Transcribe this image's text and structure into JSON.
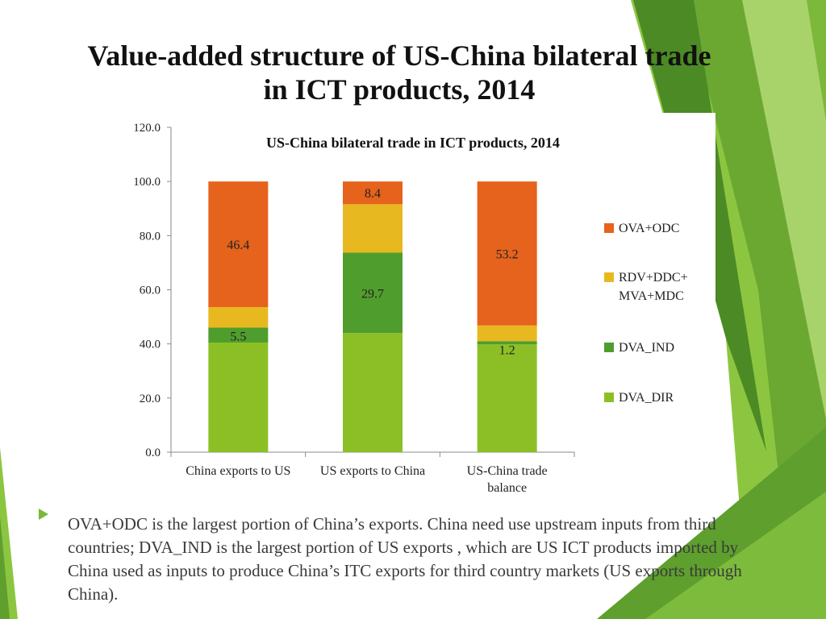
{
  "slide": {
    "title": "Value-added structure of US-China bilateral trade in ICT products, 2014",
    "bullet": "OVA+ODC is the largest portion of China’s exports. China need use upstream inputs from third countries; DVA_IND is the largest portion of US exports , which are US ICT products imported by China used as inputs to produce China’s ITC exports for third country markets (US exports through China).",
    "accent_colors": [
      "#8dc63f",
      "#5a9e2e",
      "#3f7a1e",
      "#a7d168"
    ]
  },
  "chart_data": {
    "type": "bar",
    "stacked": true,
    "title": "US-China bilateral trade in ICT products, 2014",
    "xlabel": "",
    "ylabel": "",
    "categories": [
      "China exports to US",
      "US exports to China",
      "US-China trade balance"
    ],
    "ylim": [
      0,
      120
    ],
    "yticks": [
      "0.0",
      "20.0",
      "40.0",
      "60.0",
      "80.0",
      "100.0",
      "120.0"
    ],
    "grid": false,
    "legend_position": "right",
    "series": [
      {
        "name": "DVA_DIR",
        "color": "#8cbf26",
        "values": [
          40.5,
          44.0,
          39.8
        ],
        "labels": [
          null,
          null,
          null
        ]
      },
      {
        "name": "DVA_IND",
        "color": "#4f9e2d",
        "values": [
          5.5,
          29.7,
          1.2
        ],
        "labels": [
          "5.5",
          "29.7",
          "1.2"
        ]
      },
      {
        "name": "RDV+DDC+ MVA+MDC",
        "color": "#e8b820",
        "values": [
          7.6,
          17.9,
          5.8
        ],
        "labels": [
          null,
          null,
          null
        ]
      },
      {
        "name": "OVA+ODC",
        "color": "#e5631c",
        "values": [
          46.4,
          8.4,
          53.2
        ],
        "labels": [
          "46.4",
          "8.4",
          "53.2"
        ]
      }
    ]
  }
}
